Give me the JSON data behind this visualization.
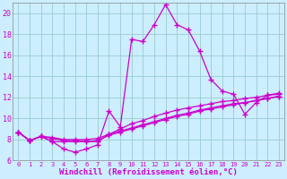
{
  "xlabel": "Windchill (Refroidissement éolien,°C)",
  "xlim_min": -0.5,
  "xlim_max": 23.5,
  "ylim_min": 6,
  "ylim_max": 21,
  "xticks": [
    0,
    1,
    2,
    3,
    4,
    5,
    6,
    7,
    8,
    9,
    10,
    11,
    12,
    13,
    14,
    15,
    16,
    17,
    18,
    19,
    20,
    21,
    22,
    23
  ],
  "yticks": [
    6,
    8,
    10,
    12,
    14,
    16,
    18,
    20
  ],
  "background_color": "#cceeff",
  "grid_color": "#99cccc",
  "line_color": "#cc00cc",
  "series": [
    [
      8.7,
      7.9,
      8.3,
      7.8,
      7.1,
      6.8,
      7.1,
      7.5,
      10.7,
      9.2,
      17.5,
      17.3,
      18.9,
      20.8,
      18.9,
      18.4,
      16.4,
      13.7,
      12.6,
      12.3,
      10.4,
      11.5,
      12.2,
      12.3
    ],
    [
      8.7,
      7.9,
      8.3,
      7.8,
      7.8,
      7.8,
      7.8,
      7.8,
      8.5,
      9.0,
      9.5,
      9.8,
      10.2,
      10.5,
      10.8,
      11.0,
      11.2,
      11.4,
      11.6,
      11.7,
      11.9,
      12.0,
      12.2,
      12.4
    ],
    [
      8.7,
      7.9,
      8.3,
      8.1,
      7.9,
      7.9,
      7.8,
      7.9,
      8.4,
      8.7,
      9.0,
      9.3,
      9.6,
      9.9,
      10.2,
      10.4,
      10.7,
      10.9,
      11.1,
      11.3,
      11.5,
      11.7,
      11.9,
      12.1
    ],
    [
      8.7,
      7.9,
      8.3,
      8.2,
      8.0,
      8.0,
      8.0,
      8.1,
      8.5,
      8.8,
      9.1,
      9.4,
      9.7,
      10.0,
      10.3,
      10.5,
      10.8,
      11.0,
      11.2,
      11.4,
      11.5,
      11.7,
      11.9,
      12.1
    ]
  ]
}
